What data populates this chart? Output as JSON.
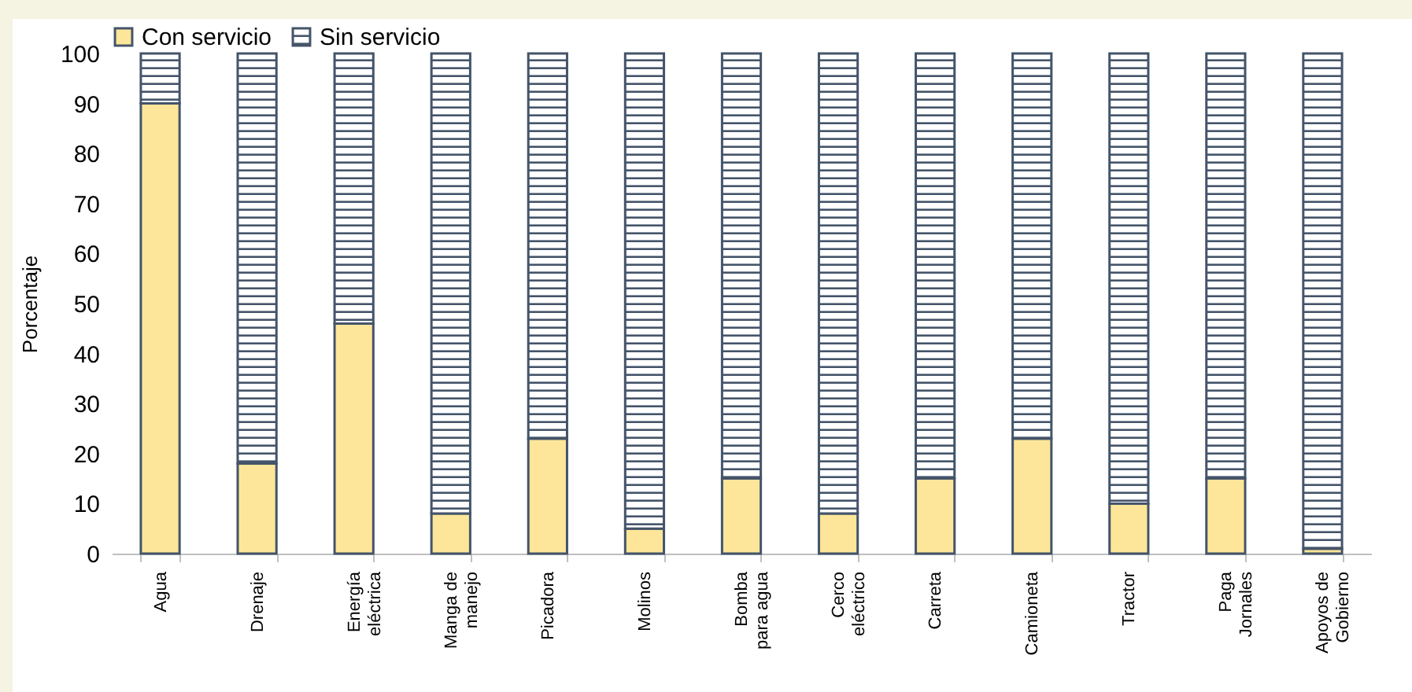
{
  "chart_data": {
    "type": "bar",
    "stacked": true,
    "ylabel": "Porcentaje",
    "categories": [
      "Agua",
      "Drenaje",
      "Energía eléctrica",
      "Manga de manejo",
      "Picadora",
      "Molinos",
      "Bomba para agua",
      "Cerco eléctrico",
      "Carreta",
      "Camioneta",
      "Tractor",
      "Paga Jornales",
      "Apoyos de Gobierno"
    ],
    "series": [
      {
        "name": "Con servicio",
        "color": "#fde699",
        "values": [
          90,
          18,
          46,
          8,
          23,
          5,
          15,
          8,
          15,
          23,
          10,
          15,
          1
        ]
      },
      {
        "name": "Sin servicio",
        "color": "#44546a",
        "values": [
          10,
          82,
          54,
          92,
          77,
          95,
          85,
          92,
          85,
          77,
          90,
          85,
          99
        ]
      }
    ],
    "ylim": [
      0,
      100
    ],
    "yticks": [
      0,
      10,
      20,
      30,
      40,
      50,
      60,
      70,
      80,
      90,
      100
    ],
    "grid": false,
    "legend": "top"
  }
}
